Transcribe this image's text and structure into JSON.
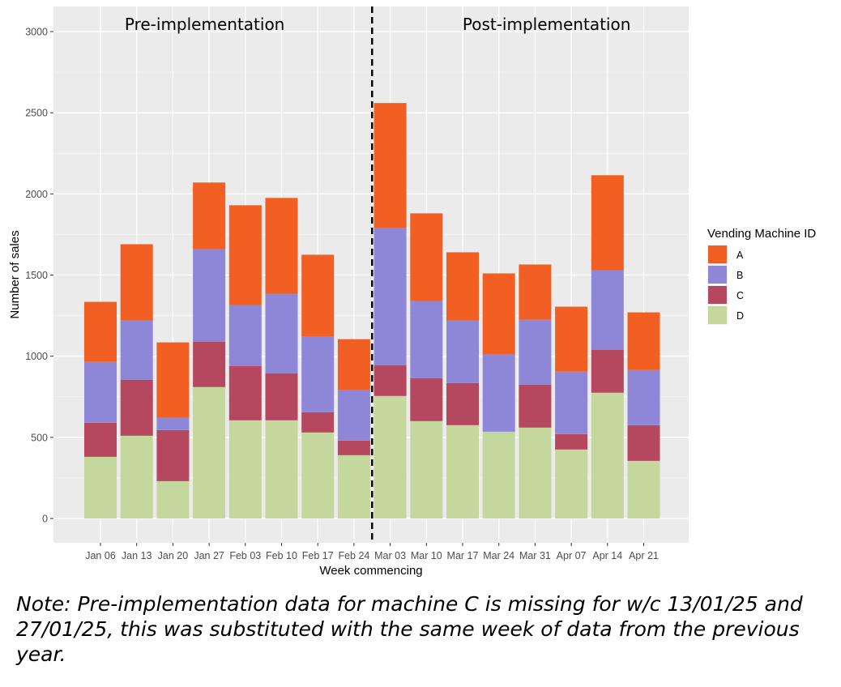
{
  "chart_data": {
    "type": "bar",
    "stacked": true,
    "xlabel": "Week commencing",
    "ylabel": "Number of sales",
    "ylim": [
      0,
      3150
    ],
    "yticks": [
      0,
      500,
      1000,
      1500,
      2000,
      2500,
      3000
    ],
    "categories": [
      "Jan 06",
      "Jan 13",
      "Jan 20",
      "Jan 27",
      "Feb 03",
      "Feb 10",
      "Feb 17",
      "Feb 24",
      "Mar 03",
      "Mar 10",
      "Mar 17",
      "Mar 24",
      "Mar 31",
      "Apr 07",
      "Apr 14",
      "Apr 21"
    ],
    "legend": {
      "title": "Vending Machine ID",
      "position": "right"
    },
    "series": [
      {
        "name": "D",
        "color": "#c4d89e",
        "values": [
          380,
          510,
          230,
          810,
          605,
          605,
          530,
          390,
          755,
          600,
          575,
          535,
          560,
          425,
          775,
          355
        ]
      },
      {
        "name": "C",
        "color": "#b5485e",
        "values": [
          210,
          345,
          315,
          280,
          335,
          290,
          125,
          90,
          190,
          265,
          260,
          0,
          265,
          95,
          265,
          220
        ]
      },
      {
        "name": "B",
        "color": "#8e87d8",
        "values": [
          375,
          365,
          75,
          570,
          375,
          490,
          465,
          310,
          845,
          475,
          385,
          475,
          400,
          385,
          490,
          340
        ]
      },
      {
        "name": "A",
        "color": "#f15f23",
        "values": [
          370,
          470,
          465,
          410,
          615,
          590,
          505,
          315,
          770,
          540,
          420,
          500,
          340,
          400,
          585,
          355
        ]
      }
    ],
    "annotations": {
      "divider_after_category": "Feb 24",
      "left_label": "Pre-implementation",
      "right_label": "Post-implementation"
    }
  },
  "note": "Note: Pre-implementation data for machine C is missing for w/c 13/01/25 and 27/01/25, this was substituted with the same week of data from the previous year."
}
